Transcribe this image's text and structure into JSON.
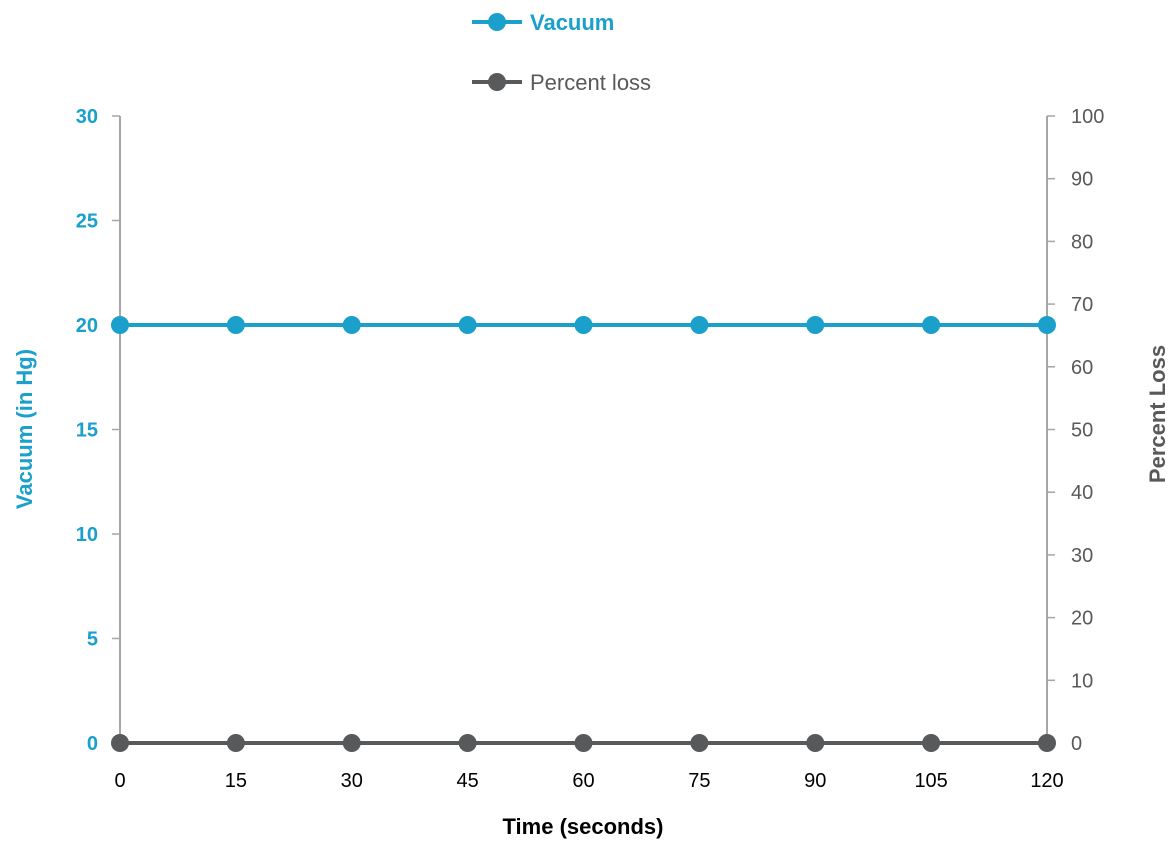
{
  "chart_data": {
    "type": "line",
    "x": [
      0,
      15,
      30,
      45,
      60,
      75,
      90,
      105,
      120
    ],
    "x_tick_labels": [
      "0",
      "15",
      "30",
      "45",
      "60",
      "75",
      "90",
      "105",
      "120"
    ],
    "xlabel": "Time (seconds)",
    "ylabel": "Vacuum (in Hg)",
    "y2label": "Percent Loss",
    "ylim": [
      0,
      30
    ],
    "y2lim": [
      0,
      100
    ],
    "y_ticks": [
      "0",
      "5",
      "10",
      "15",
      "20",
      "25",
      "30"
    ],
    "y2_ticks": [
      "0",
      "10",
      "20",
      "30",
      "40",
      "50",
      "60",
      "70",
      "80",
      "90",
      "100"
    ],
    "grid": false,
    "legend_position": "top-center",
    "series": [
      {
        "name": "Vacuum",
        "axis": "left",
        "color": "#1aa0cb",
        "values": [
          20,
          20,
          20,
          20,
          20,
          20,
          20,
          20,
          20
        ]
      },
      {
        "name": "Percent loss",
        "axis": "right",
        "color": "#58595b",
        "values": [
          0,
          0,
          0,
          0,
          0,
          0,
          0,
          0,
          0
        ]
      }
    ]
  }
}
